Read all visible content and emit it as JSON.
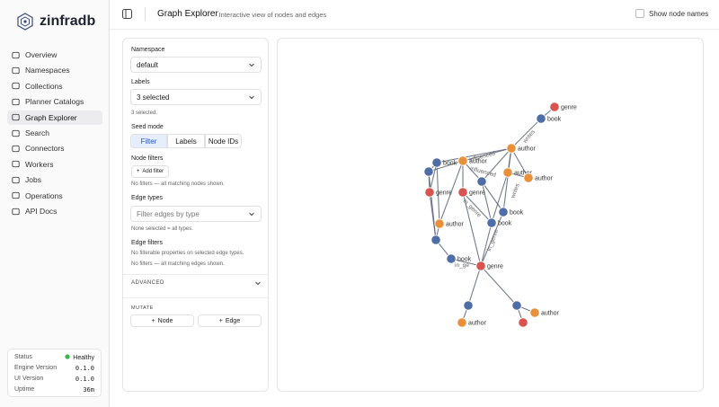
{
  "sidebar": {
    "brand": "zinfradb",
    "nav": [
      "Overview",
      "Namespaces",
      "Collections",
      "Planner Catalogs",
      "Graph Explorer",
      "Search",
      "Connectors",
      "Workers",
      "Jobs",
      "Operations",
      "API Docs"
    ],
    "active": 4,
    "status": [
      {
        "key": "Status",
        "value": "Healthy"
      },
      {
        "key": "Engine Version",
        "value": "0.1.0"
      },
      {
        "key": "UI Version",
        "value": "0.1.0"
      },
      {
        "key": "Uptime",
        "value": "36m"
      }
    ]
  },
  "header": {
    "title": "Graph Explorer",
    "subtitle": "· Interactive view of nodes and edges",
    "toggle": "Show node names"
  },
  "filters": {
    "namespace": {
      "label": "Namespace",
      "value": "default"
    },
    "labels": {
      "label": "Labels",
      "value": "3 selected",
      "hint": "3 selected."
    },
    "seed_mode": {
      "label": "Seed mode",
      "options": [
        "Filter",
        "Labels",
        "Node IDs"
      ],
      "active": 0
    },
    "node_filters": {
      "label": "Node filters",
      "button": "Add filter",
      "hint": "No filters — all matching nodes shown."
    },
    "edge_types": {
      "label": "Edge types",
      "placeholder": "Filter edges by type",
      "hint": "None selected = all types."
    },
    "edge_filters": {
      "label": "Edge filters",
      "hints": [
        "No filterable properties on selected edge types.",
        "No filters — all matching edges shown."
      ]
    },
    "advanced": "ADVANCED",
    "mutate": {
      "label": "MUTATE",
      "buttons": [
        "Node",
        "Edge"
      ]
    }
  },
  "graph": {
    "colors": {
      "genre": "#d9534f",
      "book": "#4f6ea8",
      "author": "#e8913a"
    },
    "node_labels": [
      "genre",
      "book",
      "author",
      "author",
      "author",
      "book",
      "author",
      "genre",
      "genre",
      "book",
      "author",
      "book",
      "book",
      "genre",
      "author",
      "author"
    ],
    "edge_labels": [
      "writes",
      "influenced",
      "influenced",
      "in_genre",
      "in_genre",
      "writes",
      "in_ge"
    ]
  }
}
